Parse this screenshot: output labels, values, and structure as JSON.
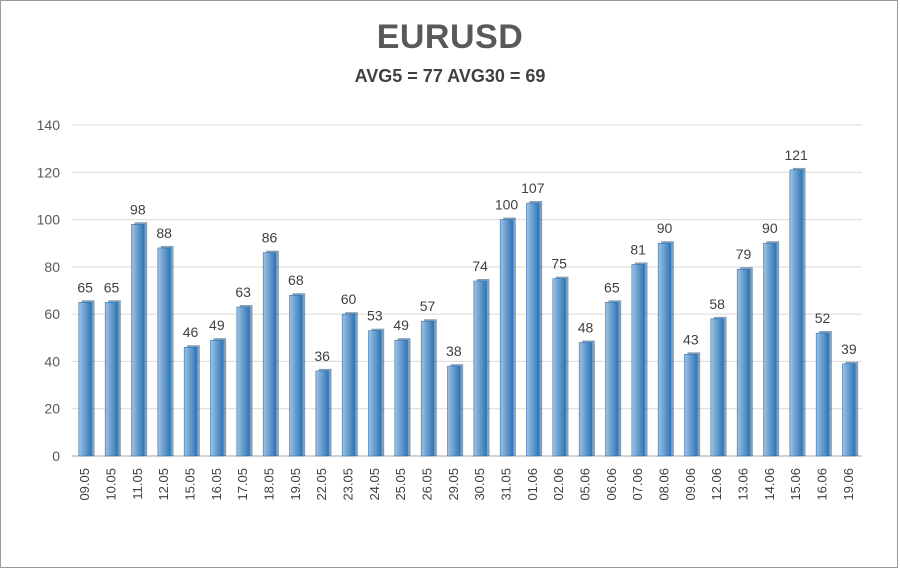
{
  "chart_data": {
    "type": "bar",
    "title": "EURUSD",
    "subtitle": "AVG5 = 77 AVG30 = 69",
    "categories": [
      "09.05",
      "10.05",
      "11.05",
      "12.05",
      "15.05",
      "16.05",
      "17.05",
      "18.05",
      "19.05",
      "22.05",
      "23.05",
      "24.05",
      "25.05",
      "26.05",
      "29.05",
      "30.05",
      "31.05",
      "01.06",
      "02.06",
      "05.06",
      "06.06",
      "07.06",
      "08.06",
      "09.06",
      "12.06",
      "13.06",
      "14.06",
      "15.06",
      "16.06",
      "19.06"
    ],
    "values": [
      65,
      65,
      98,
      88,
      46,
      49,
      63,
      86,
      68,
      36,
      60,
      53,
      49,
      57,
      38,
      74,
      100,
      107,
      75,
      48,
      65,
      81,
      90,
      43,
      58,
      79,
      90,
      121,
      52,
      39
    ],
    "ylim": [
      0,
      140
    ],
    "yticks": [
      0,
      20,
      40,
      60,
      80,
      100,
      120,
      140
    ],
    "grid": true,
    "legend": "none",
    "colors": {
      "bar_top": "#9dc3e6",
      "bar_bottom": "#2e75b6",
      "bar_edge": "#1f4e79",
      "grid": "#d9d9d9",
      "axis": "#a6a6a6"
    }
  }
}
